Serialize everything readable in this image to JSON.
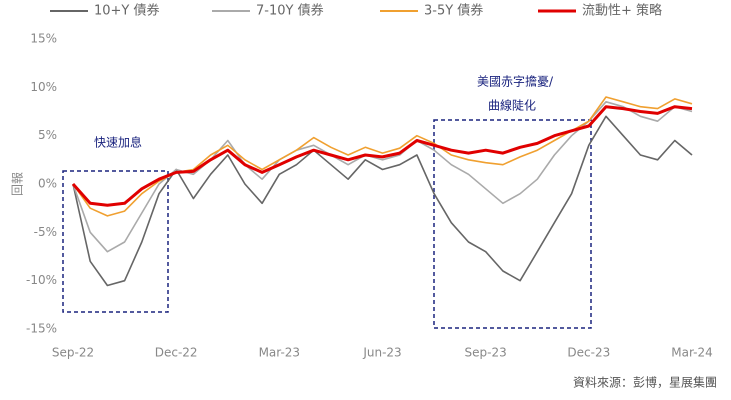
{
  "chart_data": {
    "type": "line",
    "y_label": "回報",
    "categories": [
      "Sep-22",
      null,
      null,
      null,
      null,
      null,
      "Dec-22",
      null,
      null,
      null,
      null,
      null,
      "Mar-23",
      null,
      null,
      null,
      null,
      null,
      "Jun-23",
      null,
      null,
      null,
      null,
      null,
      "Sep-23",
      null,
      null,
      null,
      null,
      null,
      "Dec-23",
      null,
      null,
      null,
      null,
      null,
      "Mar-24"
    ],
    "series": [
      {
        "name": "10+Y 債券",
        "color": "#666666",
        "values": [
          0,
          -8,
          -10.5,
          -10,
          -6,
          -1,
          1.5,
          -1.5,
          1,
          3,
          0,
          -2,
          1,
          2,
          3.5,
          2,
          0.5,
          2.5,
          1.5,
          2,
          3,
          -1,
          -4,
          -6,
          -7,
          -9,
          -10,
          -7,
          -4,
          -1,
          4,
          7,
          5,
          3,
          2.5,
          4.5,
          3
        ]
      },
      {
        "name": "7-10Y 債券",
        "color": "#aaaaaa",
        "values": [
          0,
          -5,
          -7,
          -6,
          -3,
          0,
          1.5,
          1,
          2.5,
          4.5,
          2,
          0.5,
          2.5,
          3.5,
          4,
          3,
          2,
          3,
          2.5,
          3,
          4.5,
          3.5,
          2,
          1,
          -0.5,
          -2,
          -1,
          0.5,
          3,
          5,
          6.5,
          8.5,
          8,
          7,
          6.5,
          8,
          7.5
        ]
      },
      {
        "name": "3-5Y 債券",
        "color": "#f0a030",
        "values": [
          0,
          -2.5,
          -3.3,
          -2.8,
          -1,
          0.3,
          1.2,
          1.5,
          3,
          4,
          2.5,
          1.5,
          2.5,
          3.5,
          4.8,
          3.8,
          3,
          3.8,
          3.2,
          3.7,
          5,
          4.2,
          3,
          2.5,
          2.2,
          2,
          2.8,
          3.5,
          4.5,
          5.5,
          6.5,
          9,
          8.5,
          8,
          7.8,
          8.8,
          8.3
        ]
      },
      {
        "name": "流動性+ 策略",
        "color": "#e00000",
        "values": [
          0,
          -2,
          -2.2,
          -2,
          -0.5,
          0.5,
          1.2,
          1.3,
          2.5,
          3.5,
          2,
          1.2,
          2,
          2.8,
          3.5,
          3,
          2.5,
          3,
          2.8,
          3.2,
          4.5,
          4,
          3.5,
          3.2,
          3.5,
          3.2,
          3.8,
          4.2,
          5,
          5.5,
          6,
          8,
          7.8,
          7.5,
          7.3,
          8,
          7.8
        ]
      }
    ],
    "ylim": [
      -15,
      15
    ],
    "yticks": [
      {
        "value": -15,
        "label": "-15%"
      },
      {
        "value": -10,
        "label": "-10%"
      },
      {
        "value": -5,
        "label": "-5%"
      },
      {
        "value": 0,
        "label": "0%"
      },
      {
        "value": 5,
        "label": "5%"
      },
      {
        "value": 10,
        "label": "10%"
      },
      {
        "value": 15,
        "label": "15%"
      }
    ],
    "annotations": [
      "快速加息",
      "美國赤字擔憂/",
      "曲線陡化"
    ],
    "source": "資料來源：彭博，星展集團"
  }
}
